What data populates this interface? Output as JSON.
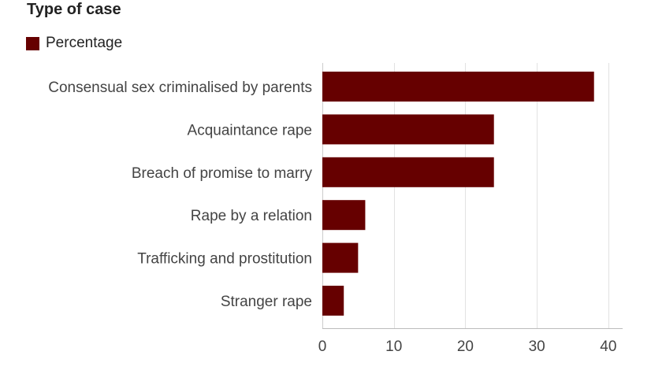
{
  "chart_data": {
    "type": "bar",
    "orientation": "horizontal",
    "title": "Type of case",
    "xlabel": "",
    "ylabel": "",
    "categories": [
      "Consensual sex criminalised by parents",
      "Acquaintance rape",
      "Breach of promise to marry",
      "Rape by a relation",
      "Trafficking and prostitution",
      "Stranger rape"
    ],
    "series": [
      {
        "name": "Percentage",
        "color": "#660000",
        "values": [
          38,
          24,
          24,
          6,
          5,
          3
        ]
      }
    ],
    "xlim": [
      0,
      42
    ],
    "xticks": [
      0,
      10,
      20,
      30,
      40
    ],
    "grid": true,
    "legend_position": "top-left"
  }
}
